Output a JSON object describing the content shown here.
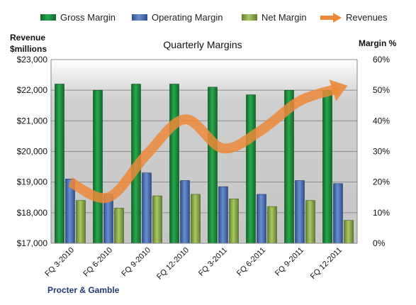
{
  "chart_data": {
    "type": "bar",
    "title": "Quarterly Margins",
    "left_axis_title_line1": "Revenue",
    "left_axis_title_line2": "$millions",
    "right_axis_title": "Margin %",
    "footer": "Procter & Gamble",
    "categories": [
      "FQ 3-2010",
      "FQ 6-2010",
      "FQ 9-2010",
      "FQ 12-2010",
      "FQ 3-2011",
      "FQ 6-2011",
      "FQ 9-2011",
      "FQ 12-2011"
    ],
    "left_axis": {
      "ylim": [
        17000,
        23000
      ],
      "ticks": [
        17000,
        18000,
        19000,
        20000,
        21000,
        22000,
        23000
      ],
      "tick_labels": [
        "$17,000",
        "$18,000",
        "$19,000",
        "$20,000",
        "$21,000",
        "$22,000",
        "$23,000"
      ]
    },
    "right_axis": {
      "ylim": [
        0,
        60
      ],
      "ticks": [
        0,
        10,
        20,
        30,
        40,
        50,
        60
      ],
      "tick_labels": [
        "0%",
        "10%",
        "20%",
        "30%",
        "40%",
        "50%",
        "60%"
      ]
    },
    "series": [
      {
        "name": "Gross Margin",
        "kind": "bar",
        "axis": "right",
        "color": "#1f8a3c",
        "values": [
          52,
          50,
          52,
          52,
          51,
          48.5,
          50,
          50
        ]
      },
      {
        "name": "Operating Margin",
        "kind": "bar",
        "axis": "right",
        "color": "#4a70b8",
        "values": [
          21,
          16,
          23,
          20.5,
          18.5,
          16,
          20.5,
          19.5
        ]
      },
      {
        "name": "Net Margin",
        "kind": "bar",
        "axis": "right",
        "color": "#8aae4a",
        "values": [
          14,
          11.5,
          15.5,
          16,
          14.5,
          12,
          14,
          7.5
        ]
      },
      {
        "name": "Revenues",
        "kind": "line",
        "axis": "left",
        "color": "#ec8a3a",
        "values": [
          19000,
          18500,
          19900,
          21050,
          20100,
          20700,
          21650,
          22050
        ]
      }
    ],
    "grid": true,
    "legend_position": "top"
  }
}
